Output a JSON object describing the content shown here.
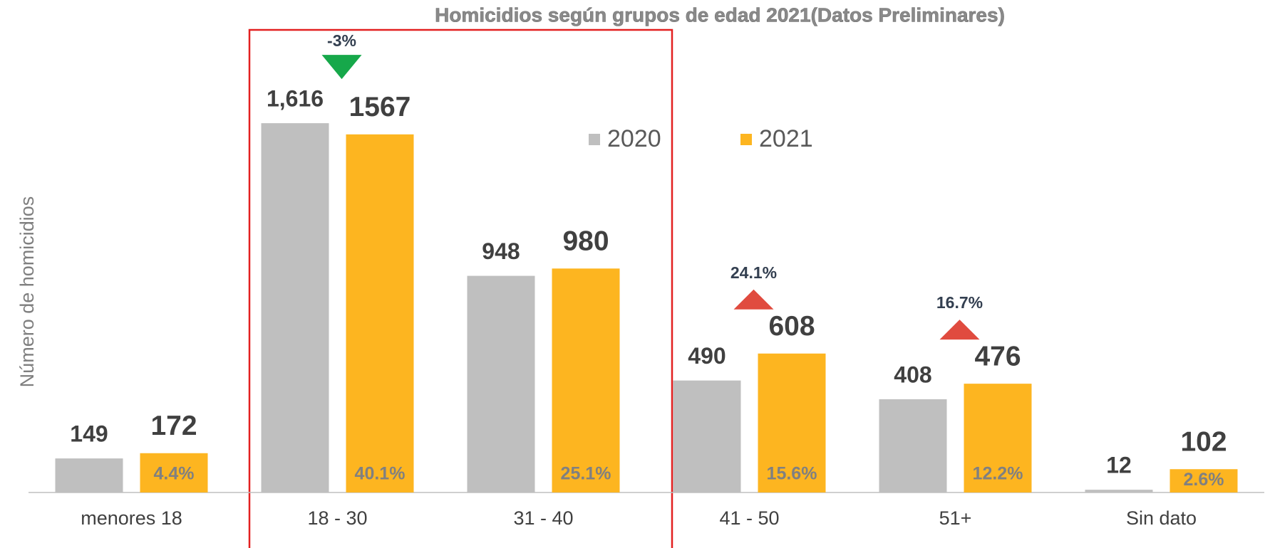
{
  "chart_data": {
    "type": "bar",
    "title": "Homicidios según grupos de edad 2021(Datos Preliminares)",
    "y_axis_label": "Número de homicidios",
    "categories": [
      "menores 18",
      "18 - 30",
      "31 - 40",
      "41 - 50",
      "51+",
      "Sin dato"
    ],
    "series": [
      {
        "name": "2020",
        "color": "#bfbfbf",
        "values": [
          149,
          1616,
          948,
          490,
          408,
          12
        ],
        "value_labels": [
          "149",
          "1,616",
          "948",
          "490",
          "408",
          "12"
        ]
      },
      {
        "name": "2021",
        "color": "#fdb520",
        "values": [
          172,
          1567,
          980,
          608,
          476,
          102
        ],
        "share_values": [
          4.4,
          40.1,
          25.1,
          15.6,
          12.2,
          2.6
        ],
        "share_labels": [
          "4.4%",
          "40.1%",
          "25.1%",
          "15.6%",
          "12.2%",
          "2.6%"
        ]
      }
    ],
    "change_values": [
      null,
      -3,
      null,
      24.1,
      16.7,
      null
    ],
    "change_labels": [
      null,
      "-3%",
      null,
      "24.1%",
      "16.7%",
      null
    ],
    "up_color": "#e04b3f",
    "down_color": "#16a84a",
    "ylim": [
      0,
      1800
    ],
    "grid": false
  }
}
